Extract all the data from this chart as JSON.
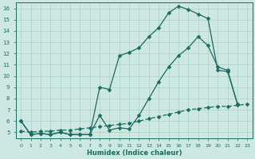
{
  "xlabel": "Humidex (Indice chaleur)",
  "bg_color": "#cce8e0",
  "line_color": "#1a6b60",
  "grid_color": "#aacfc7",
  "xlim": [
    -0.5,
    23.5
  ],
  "ylim": [
    4.5,
    16.5
  ],
  "xticks": [
    0,
    1,
    2,
    3,
    4,
    5,
    6,
    7,
    8,
    9,
    10,
    11,
    12,
    13,
    14,
    15,
    16,
    17,
    18,
    19,
    20,
    21,
    22,
    23
  ],
  "yticks": [
    5,
    6,
    7,
    8,
    9,
    10,
    11,
    12,
    13,
    14,
    15,
    16
  ],
  "curve1_x": [
    0,
    1,
    2,
    3,
    4,
    5,
    6,
    7,
    8,
    9,
    10,
    11,
    12,
    13,
    14,
    15,
    16,
    17,
    18,
    19,
    20,
    21,
    22
  ],
  "curve1_y": [
    6.0,
    4.8,
    4.9,
    4.8,
    5.0,
    4.8,
    4.8,
    4.8,
    9.0,
    8.8,
    11.8,
    12.1,
    12.5,
    13.5,
    14.3,
    15.6,
    16.2,
    15.9,
    15.5,
    15.1,
    10.5,
    10.4,
    7.5
  ],
  "curve2_x": [
    0,
    1,
    2,
    3,
    4,
    5,
    6,
    7,
    8,
    9,
    10,
    11,
    12,
    13,
    14,
    15,
    16,
    17,
    18,
    19,
    20,
    21,
    22
  ],
  "curve2_y": [
    6.0,
    4.8,
    4.9,
    4.8,
    5.0,
    4.8,
    4.8,
    4.8,
    6.5,
    5.2,
    5.4,
    5.3,
    6.5,
    8.0,
    9.5,
    10.8,
    11.8,
    12.5,
    13.5,
    12.7,
    10.8,
    10.5,
    7.5
  ],
  "curve3_x": [
    0,
    1,
    2,
    3,
    4,
    5,
    6,
    7,
    8,
    9,
    10,
    11,
    12,
    13,
    14,
    15,
    16,
    17,
    18,
    19,
    20,
    21,
    22,
    23
  ],
  "curve3_y": [
    5.1,
    5.0,
    5.1,
    5.1,
    5.2,
    5.2,
    5.3,
    5.4,
    5.5,
    5.6,
    5.7,
    5.8,
    6.0,
    6.2,
    6.4,
    6.6,
    6.8,
    7.0,
    7.1,
    7.2,
    7.3,
    7.3,
    7.4,
    7.5
  ]
}
